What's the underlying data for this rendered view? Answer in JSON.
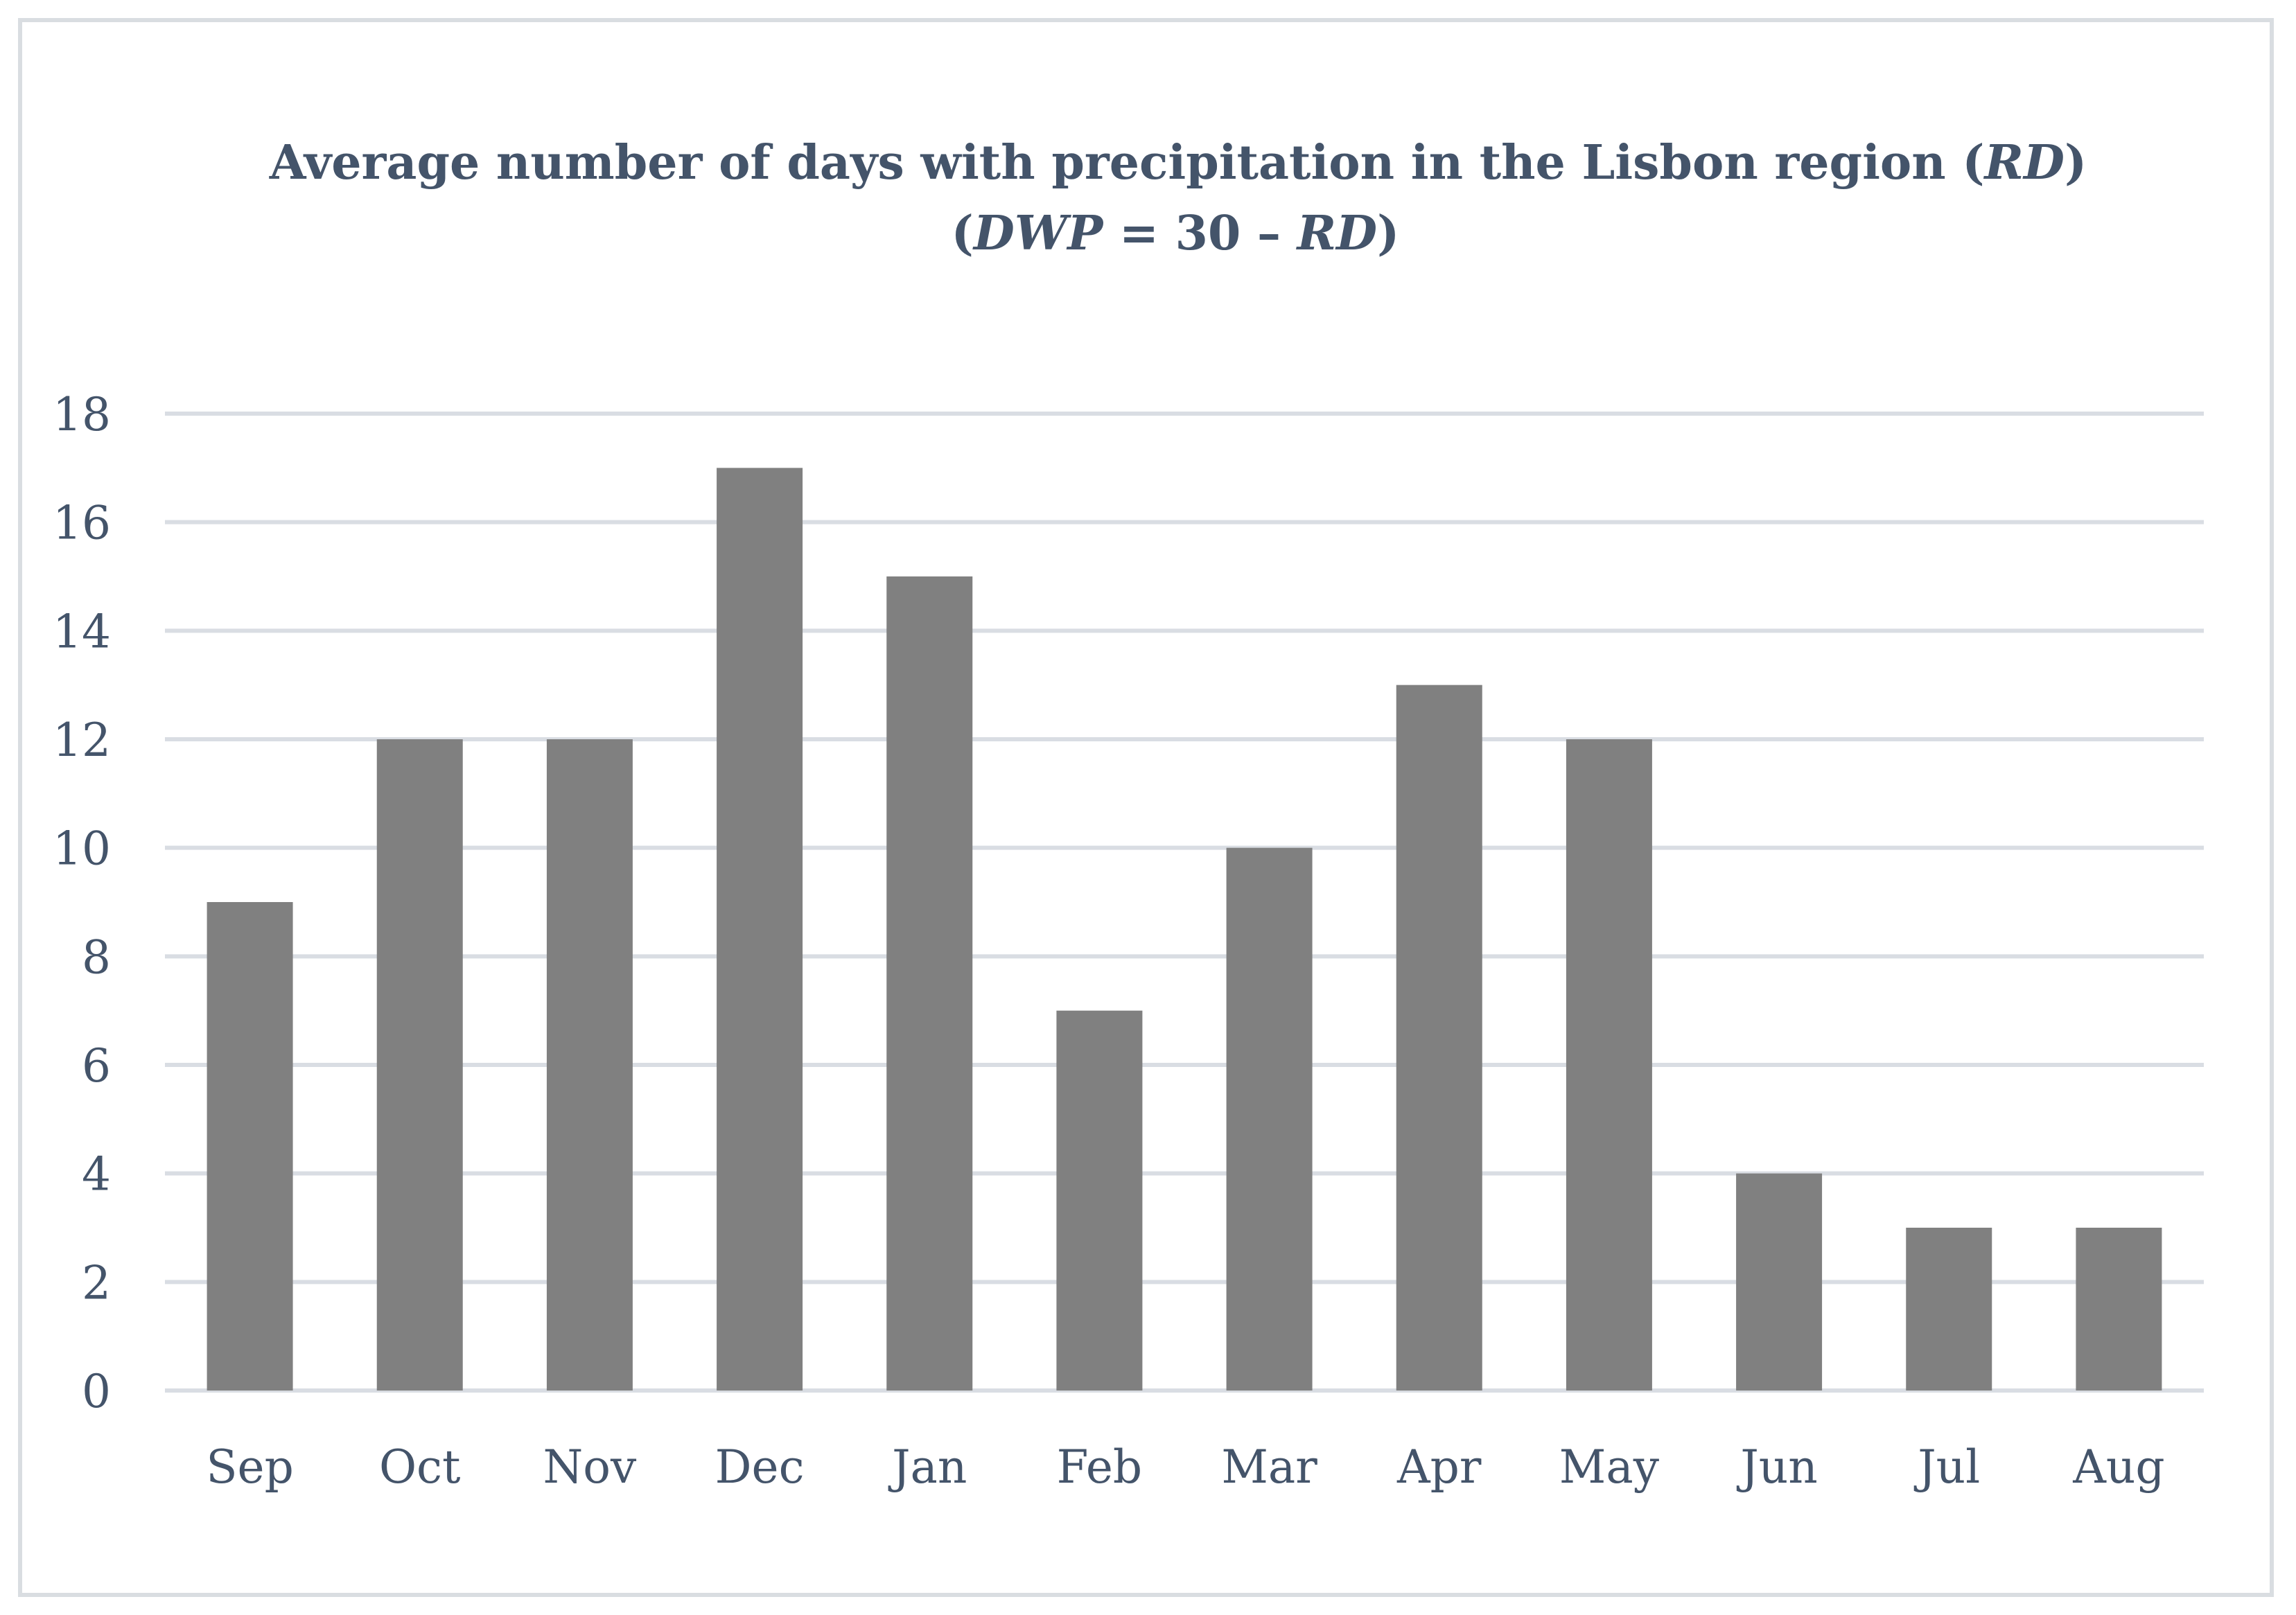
{
  "chart_data": {
    "type": "bar",
    "title": {
      "line1": {
        "prefix": "Average number of days with precipitation in the Lisbon region (",
        "italic": "RD",
        "suffix": ")"
      },
      "line2": {
        "open": "(",
        "italic_a": "DWP",
        "middle": " = 30 – ",
        "italic_b": "RD",
        "close": ")"
      }
    },
    "categories": [
      "Sep",
      "Oct",
      "Nov",
      "Dec",
      "Jan",
      "Feb",
      "Mar",
      "Apr",
      "May",
      "Jun",
      "Jul",
      "Aug"
    ],
    "values": [
      9,
      12,
      12,
      17,
      15,
      7,
      10,
      13,
      12,
      4,
      3,
      3
    ],
    "ylim": [
      0,
      18
    ],
    "yticks": [
      0,
      2,
      4,
      6,
      8,
      10,
      12,
      14,
      16,
      18
    ],
    "xlabel": "",
    "ylabel": "",
    "grid": true,
    "legend": "none",
    "colors": {
      "bar": "#808080",
      "grid": "#d9dde3",
      "text": "#44546a",
      "frame": "#d9dde1"
    }
  }
}
